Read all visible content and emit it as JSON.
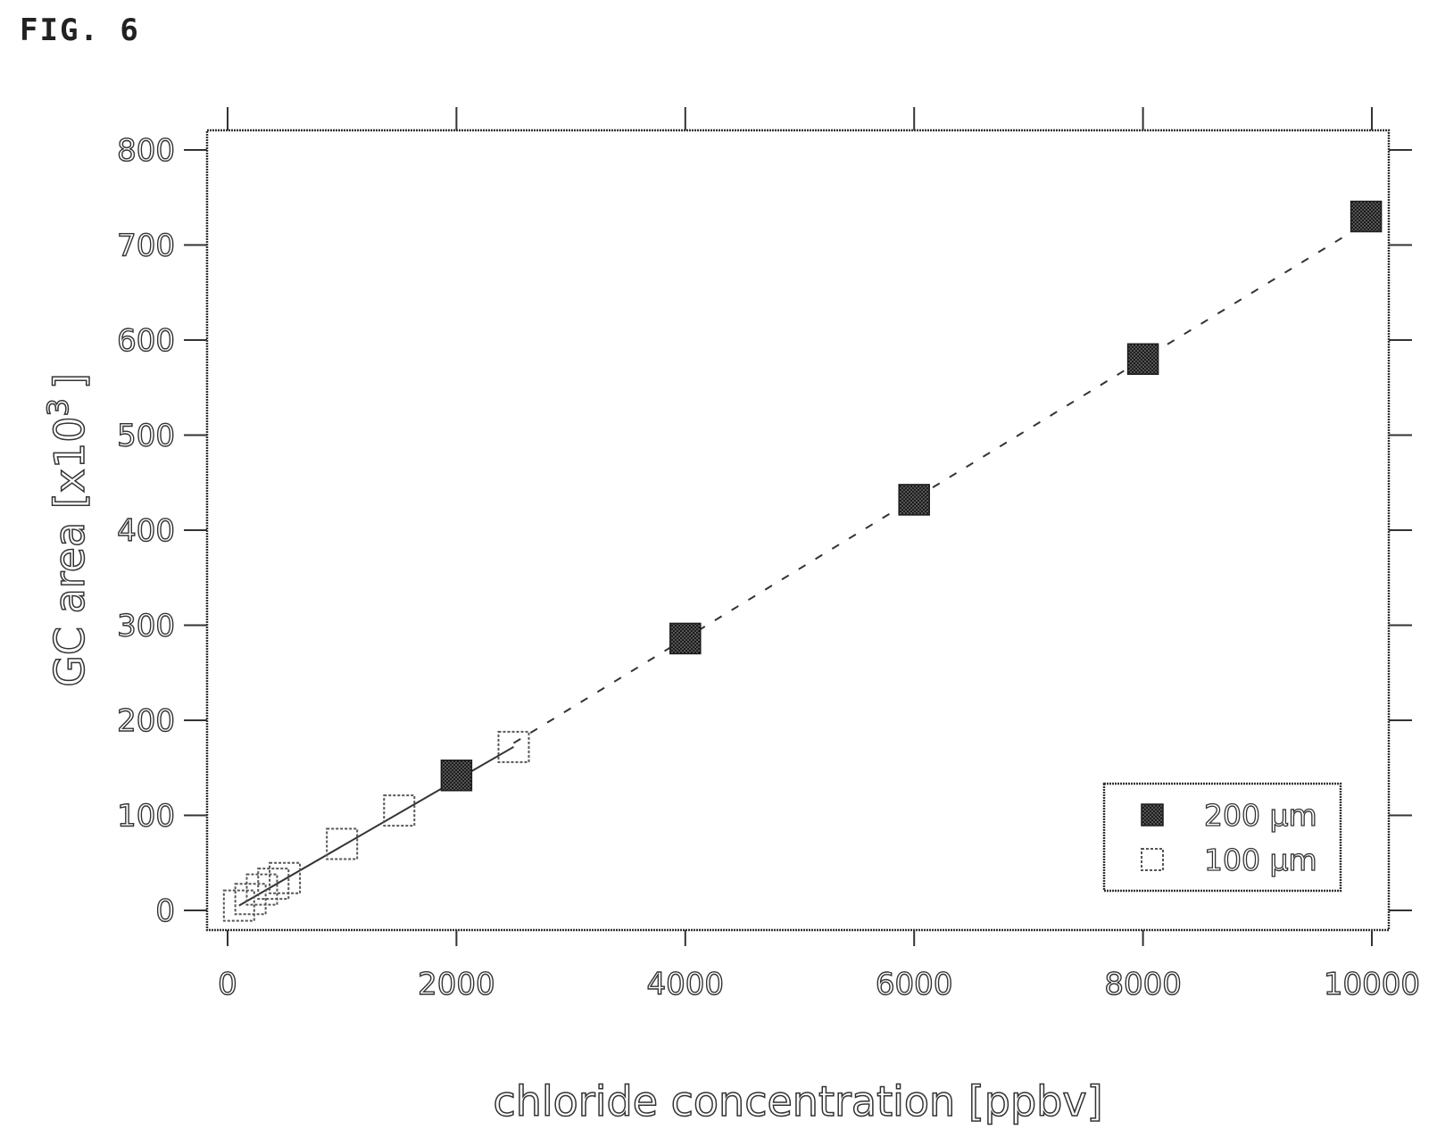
{
  "figure": {
    "label": "FIG. 6"
  },
  "chart_data": {
    "type": "scatter",
    "xlabel": "chloride concentration [ppbv]",
    "ylabel": "GC area [x10",
    "ylabel_superscript": "3",
    "ylabel_suffix": "]",
    "xlim": [
      -100,
      10550
    ],
    "ylim": [
      -20,
      830
    ],
    "x_ticks": [
      0,
      2000,
      4000,
      6000,
      8000,
      10000
    ],
    "x_tick_labels": [
      "0",
      "2000",
      "4000",
      "6000",
      "8000",
      "10000"
    ],
    "y_ticks": [
      0,
      100,
      200,
      300,
      400,
      500,
      600,
      700,
      800
    ],
    "y_tick_labels": [
      "0",
      "100",
      "200",
      "300",
      "400",
      "500",
      "600",
      "700",
      "800"
    ],
    "grid": false,
    "legend_position": "bottom-right",
    "series": [
      {
        "name": "200 µm",
        "marker": "filled-square",
        "color": "#333333",
        "points": [
          [
            2000,
            142
          ],
          [
            4000,
            286
          ],
          [
            6000,
            432
          ],
          [
            8000,
            580
          ],
          [
            9950,
            730
          ]
        ],
        "fit": {
          "style": "dashed",
          "from": [
            2500,
            176
          ],
          "to": [
            9800,
            712
          ]
        }
      },
      {
        "name": "100 µm",
        "marker": "open-square",
        "color": "#555555",
        "points": [
          [
            100,
            5
          ],
          [
            200,
            12
          ],
          [
            300,
            22
          ],
          [
            400,
            28
          ],
          [
            500,
            34
          ],
          [
            1000,
            70
          ],
          [
            1500,
            105
          ],
          [
            2500,
            172
          ]
        ],
        "fit": {
          "style": "solid",
          "from": [
            100,
            5
          ],
          "to": [
            2500,
            172
          ]
        }
      }
    ]
  }
}
